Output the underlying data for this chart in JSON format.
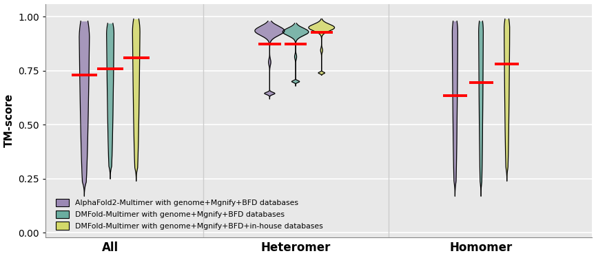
{
  "colors": {
    "alphafold": "#9B89B4",
    "dmfold": "#6BADA0",
    "dmfold_inhouse": "#D4D96A"
  },
  "legend_labels": [
    "AlphaFold2-Multimer with genome+Mgnify+BFD databases",
    "DMFold-Multimer with genome+Mgnify+BFD databases",
    "DMFold-Multimer with genome+Mgnify+BFD+in-house databases"
  ],
  "groups": [
    "All",
    "Heteromer",
    "Homomer"
  ],
  "ylabel": "TM-score",
  "background_color": "#e8e8e8",
  "grid_color": "#ffffff",
  "medians": {
    "All": [
      0.73,
      0.76,
      0.81
    ],
    "Heteromer": [
      0.875,
      0.875,
      0.928
    ],
    "Homomer": [
      0.635,
      0.695,
      0.78
    ]
  },
  "group_centers": {
    "All": 1.0,
    "Heteromer": 3.0,
    "Homomer": 5.0
  },
  "offsets": [
    -0.28,
    0.0,
    0.28
  ],
  "xlim": [
    0.3,
    6.2
  ],
  "ylim": [
    -0.02,
    1.06
  ],
  "yticks": [
    0.0,
    0.25,
    0.5,
    0.75,
    1.0
  ]
}
